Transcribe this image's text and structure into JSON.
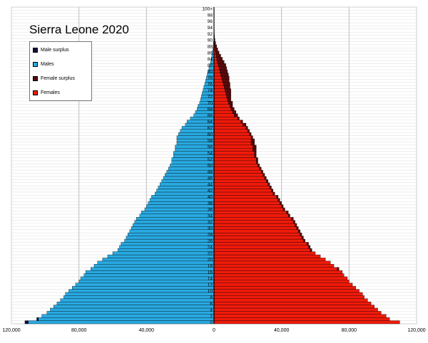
{
  "chart_data": {
    "type": "bar",
    "title": "Sierra Leone 2020",
    "xaxis_ticks": [
      "120,000",
      "80,000",
      "40,000",
      "0",
      "40,000",
      "80,000",
      "120,000"
    ],
    "xaxis_tick_values": [
      -120000,
      -80000,
      -40000,
      0,
      40000,
      80000,
      120000
    ],
    "xlim": [
      -120000,
      120000
    ],
    "grid": true,
    "legend_position": "top-left",
    "legend": [
      {
        "label": "Male surplus",
        "color": "#101040"
      },
      {
        "label": "Males",
        "color": "#29a9e1"
      },
      {
        "label": "Female surplus",
        "color": "#5a0a0a"
      },
      {
        "label": "Females",
        "color": "#f01a0a"
      }
    ],
    "age_labels": [
      "0",
      "2",
      "4",
      "6",
      "8",
      "10",
      "12",
      "14",
      "16",
      "18",
      "20",
      "22",
      "24",
      "26",
      "28",
      "30",
      "32",
      "34",
      "36",
      "38",
      "40",
      "42",
      "44",
      "46",
      "48",
      "50",
      "52",
      "54",
      "56",
      "58",
      "60",
      "62",
      "64",
      "66",
      "68",
      "70",
      "72",
      "74",
      "76",
      "78",
      "80",
      "82",
      "84",
      "86",
      "88",
      "90",
      "92",
      "94",
      "96",
      "98",
      "100+"
    ],
    "males": [
      112000,
      105000,
      102000,
      99000,
      97000,
      95000,
      93000,
      91000,
      89000,
      88000,
      86000,
      84000,
      82000,
      80000,
      79000,
      77000,
      76000,
      73000,
      71000,
      69000,
      66000,
      63000,
      60000,
      57000,
      56000,
      55000,
      53000,
      52000,
      51000,
      50000,
      49000,
      48000,
      47000,
      46000,
      44000,
      43000,
      41000,
      40000,
      39000,
      38000,
      37000,
      35000,
      34000,
      33000,
      32000,
      31000,
      30000,
      29000,
      28000,
      27000,
      26000,
      25000,
      25000,
      24000,
      24000,
      23000,
      23000,
      22000,
      22000,
      22000,
      21000,
      20000,
      19000,
      17000,
      16000,
      14000,
      12000,
      11000,
      10000,
      9500,
      8500,
      8000,
      7500,
      7000,
      6500,
      6000,
      5500,
      5000,
      4500,
      4000,
      3500,
      3000,
      2500,
      2000,
      1600,
      1300,
      1000,
      700,
      450,
      300,
      150,
      100,
      60,
      40,
      20,
      10,
      5,
      3,
      2,
      1,
      1
    ],
    "females": [
      110000,
      104000,
      102000,
      99000,
      97000,
      95000,
      93000,
      91000,
      89000,
      88000,
      86000,
      84000,
      82000,
      80000,
      79000,
      77000,
      76000,
      74000,
      71000,
      69000,
      66000,
      63000,
      60000,
      58000,
      57000,
      56000,
      54000,
      53000,
      52000,
      51000,
      50000,
      49000,
      48000,
      47000,
      45000,
      44000,
      42000,
      41000,
      40000,
      39000,
      38000,
      36000,
      35000,
      34000,
      33000,
      32000,
      31000,
      30000,
      29000,
      28000,
      27000,
      26000,
      26000,
      25000,
      25000,
      25000,
      25000,
      24000,
      24000,
      23000,
      22000,
      21000,
      20000,
      19000,
      17000,
      15000,
      14000,
      13000,
      12000,
      11000,
      11000,
      10000,
      10000,
      10000,
      10000,
      9500,
      9500,
      9000,
      9000,
      8500,
      8000,
      7500,
      7000,
      6000,
      5000,
      4000,
      3000,
      2200,
      1600,
      1000,
      600,
      350,
      200,
      100,
      50,
      25,
      12,
      6,
      3,
      2,
      1
    ]
  }
}
